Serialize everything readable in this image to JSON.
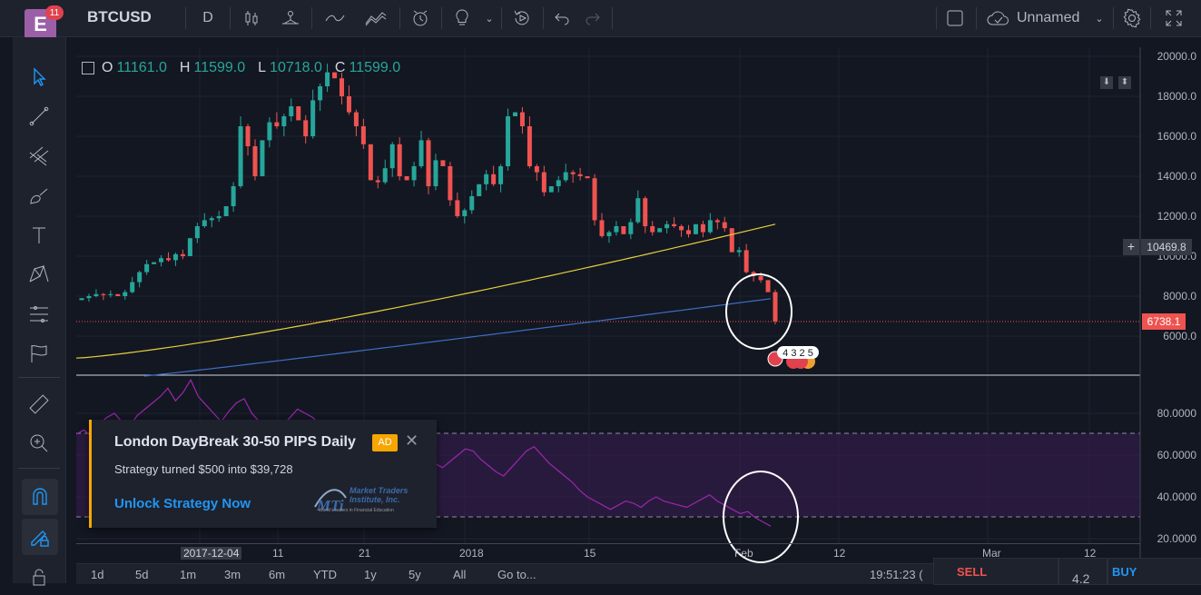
{
  "header": {
    "notifications": "11",
    "logo_letter": "E",
    "symbol": "BTCUSD",
    "interval": "D",
    "layout_name": "Unnamed"
  },
  "ohlc": {
    "o_label": "O",
    "o": "11161.0",
    "h_label": "H",
    "h": "11599.0",
    "l_label": "L",
    "l": "10718.0",
    "c_label": "C",
    "c": "11599.0"
  },
  "price_axis": [
    "20000.0",
    "18000.0",
    "16000.0",
    "14000.0",
    "12000.0",
    "10000.0",
    "8000.0",
    "6000.0"
  ],
  "indicator_axis": [
    "80.0000",
    "60.0000",
    "40.0000",
    "20.0000"
  ],
  "crosshair_price": "10469.8",
  "last_price": "6738.1",
  "time_axis": [
    "2017-12-04",
    "11",
    "21",
    "2018",
    "15",
    "Feb",
    "12",
    "Mar",
    "12"
  ],
  "events": "4 3 2 5",
  "ad": {
    "title": "London DayBreak 30-50 PIPS Daily",
    "badge": "AD",
    "text": "Strategy turned $500 into $39,728",
    "cta": "Unlock Strategy Now",
    "brand_line1": "Market Traders",
    "brand_line2": "Institute, Inc.",
    "brand_tag": "World Leaders in Financial Education",
    "brand_mark": "MTi"
  },
  "ranges": [
    "1d",
    "5d",
    "1m",
    "3m",
    "6m",
    "YTD",
    "1y",
    "5y",
    "All",
    "Go to..."
  ],
  "clock": "19:51:23 (",
  "sell_label": "SELL",
  "buy_label": "BUY",
  "spread": "4.2",
  "colors": {
    "up": "#26a69a",
    "down": "#ef5350",
    "ma50": "#e8d03c",
    "ma200": "#3d6fc4",
    "rsi": "#9c27b0",
    "accent": "#2196f3"
  }
}
